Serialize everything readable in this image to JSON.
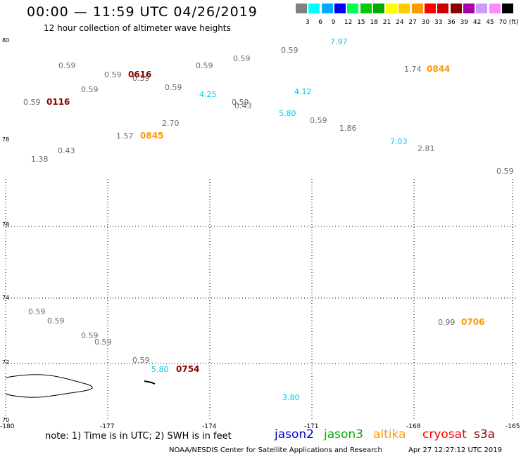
{
  "title": "00:00 — 11:59 UTC 04/26/2019",
  "subtitle": "12 hour collection of altimeter wave heights",
  "scale": {
    "unit": "(ft)",
    "ticks": [
      "3",
      "6",
      "9",
      "12",
      "15",
      "18",
      "21",
      "24",
      "27",
      "30",
      "33",
      "36",
      "39",
      "42",
      "45",
      "70"
    ],
    "colors": [
      "#808080",
      "#00ffff",
      "#00aaff",
      "#0000ff",
      "#00ff55",
      "#00cc00",
      "#00aa00",
      "#ffff00",
      "#ffcc00",
      "#ff9900",
      "#ff0000",
      "#cc0000",
      "#880000",
      "#aa00aa",
      "#cc99ff",
      "#ff88ff",
      "#000000"
    ]
  },
  "map": {
    "lat_labels": [
      "80",
      "78",
      "76",
      "74",
      "72",
      "70"
    ],
    "lon_labels": [
      "-180",
      "-177",
      "-174",
      "-171",
      "-168",
      "-165"
    ],
    "points": [
      {
        "v": "0.59",
        "c": "grey"
      },
      {
        "v": "0.59",
        "c": "grey"
      },
      {
        "v": "0.59",
        "c": "grey"
      },
      {
        "v": "0.59",
        "c": "grey"
      },
      {
        "v": "0.59",
        "c": "grey"
      },
      {
        "v": "0.59",
        "c": "grey"
      },
      {
        "v": "0.59",
        "c": "grey"
      },
      {
        "v": "0.59",
        "c": "grey"
      },
      {
        "v": "0.59",
        "c": "grey"
      },
      {
        "v": "0.59",
        "c": "grey"
      },
      {
        "v": "0.59",
        "c": "grey"
      },
      {
        "v": "0.43",
        "c": "grey"
      },
      {
        "v": "0.59",
        "c": "grey"
      },
      {
        "v": "1.57",
        "c": "grey"
      },
      {
        "v": "2.70",
        "c": "grey"
      },
      {
        "v": "0.43",
        "c": "grey"
      },
      {
        "v": "1.38",
        "c": "grey"
      },
      {
        "v": "1.86",
        "c": "grey"
      },
      {
        "v": "2.81",
        "c": "grey"
      },
      {
        "v": "1.74",
        "c": "grey"
      },
      {
        "v": "0.59",
        "c": "grey"
      },
      {
        "v": "7.97",
        "c": "cyan"
      },
      {
        "v": "4.25",
        "c": "cyan"
      },
      {
        "v": "4.12",
        "c": "cyan"
      },
      {
        "v": "5.80",
        "c": "cyan"
      },
      {
        "v": "7.03",
        "c": "cyan"
      },
      {
        "v": "0.59",
        "c": "grey"
      },
      {
        "v": "0.59",
        "c": "grey"
      },
      {
        "v": "0.59",
        "c": "grey"
      },
      {
        "v": "0.59",
        "c": "grey"
      },
      {
        "v": "0.59",
        "c": "grey"
      },
      {
        "v": "0.99",
        "c": "grey"
      },
      {
        "v": "5.80",
        "c": "cyan"
      },
      {
        "v": "3.80",
        "c": "cyan"
      }
    ],
    "passes": [
      {
        "label": "0616",
        "color": "#880000"
      },
      {
        "label": "0116",
        "color": "#880000"
      },
      {
        "label": "0845",
        "color": "#ff9900"
      },
      {
        "label": "0844",
        "color": "#ff9900"
      },
      {
        "label": "0706",
        "color": "#ff9900"
      },
      {
        "label": "0754",
        "color": "#880000"
      }
    ]
  },
  "footer": {
    "note": "note: 1) Time is in UTC; 2) SWH is in feet",
    "satellites": [
      {
        "name": "jason2",
        "color": "#0000cc"
      },
      {
        "name": "jason3",
        "color": "#00aa00"
      },
      {
        "name": "altika",
        "color": "#ff9900"
      },
      {
        "name": "cryosat",
        "color": "#ff0000"
      },
      {
        "name": "s3a",
        "color": "#880000"
      }
    ],
    "credit": "NOAA/NESDIS Center for Satellite Applications and Research",
    "timestamp": "Apr 27 12:27:12 UTC 2019"
  }
}
